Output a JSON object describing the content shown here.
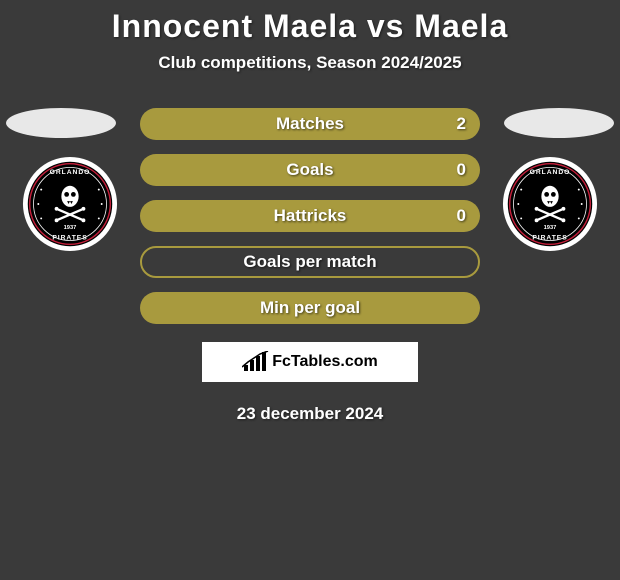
{
  "title": "Innocent Maela vs Maela",
  "subtitle": "Club competitions, Season 2024/2025",
  "stats": [
    {
      "label": "Matches",
      "value": "2",
      "bg": "#a89a3e",
      "border": "none"
    },
    {
      "label": "Goals",
      "value": "0",
      "bg": "#a89a3e",
      "border": "none"
    },
    {
      "label": "Hattricks",
      "value": "0",
      "bg": "#a89a3e",
      "border": "none"
    },
    {
      "label": "Goals per match",
      "value": "",
      "bg": "transparent",
      "border": "2px solid #a89a3e"
    },
    {
      "label": "Min per goal",
      "value": "",
      "bg": "#a89a3e",
      "border": "none"
    }
  ],
  "branding": "FcTables.com",
  "date": "23 december 2024",
  "club": {
    "name": "Orlando Pirates",
    "founded": "1937",
    "outer_ring": "#ffffff",
    "inner_bg": "#000000",
    "accent_red": "#c41e3a",
    "text_color": "#ffffff"
  },
  "colors": {
    "page_bg": "#3a3a3a",
    "bar_filled": "#a89a3e",
    "bar_border": "#a89a3e",
    "text": "#ffffff",
    "placeholder": "#e8e8e8",
    "fctables_bg": "#ffffff",
    "fctables_text": "#000000"
  }
}
